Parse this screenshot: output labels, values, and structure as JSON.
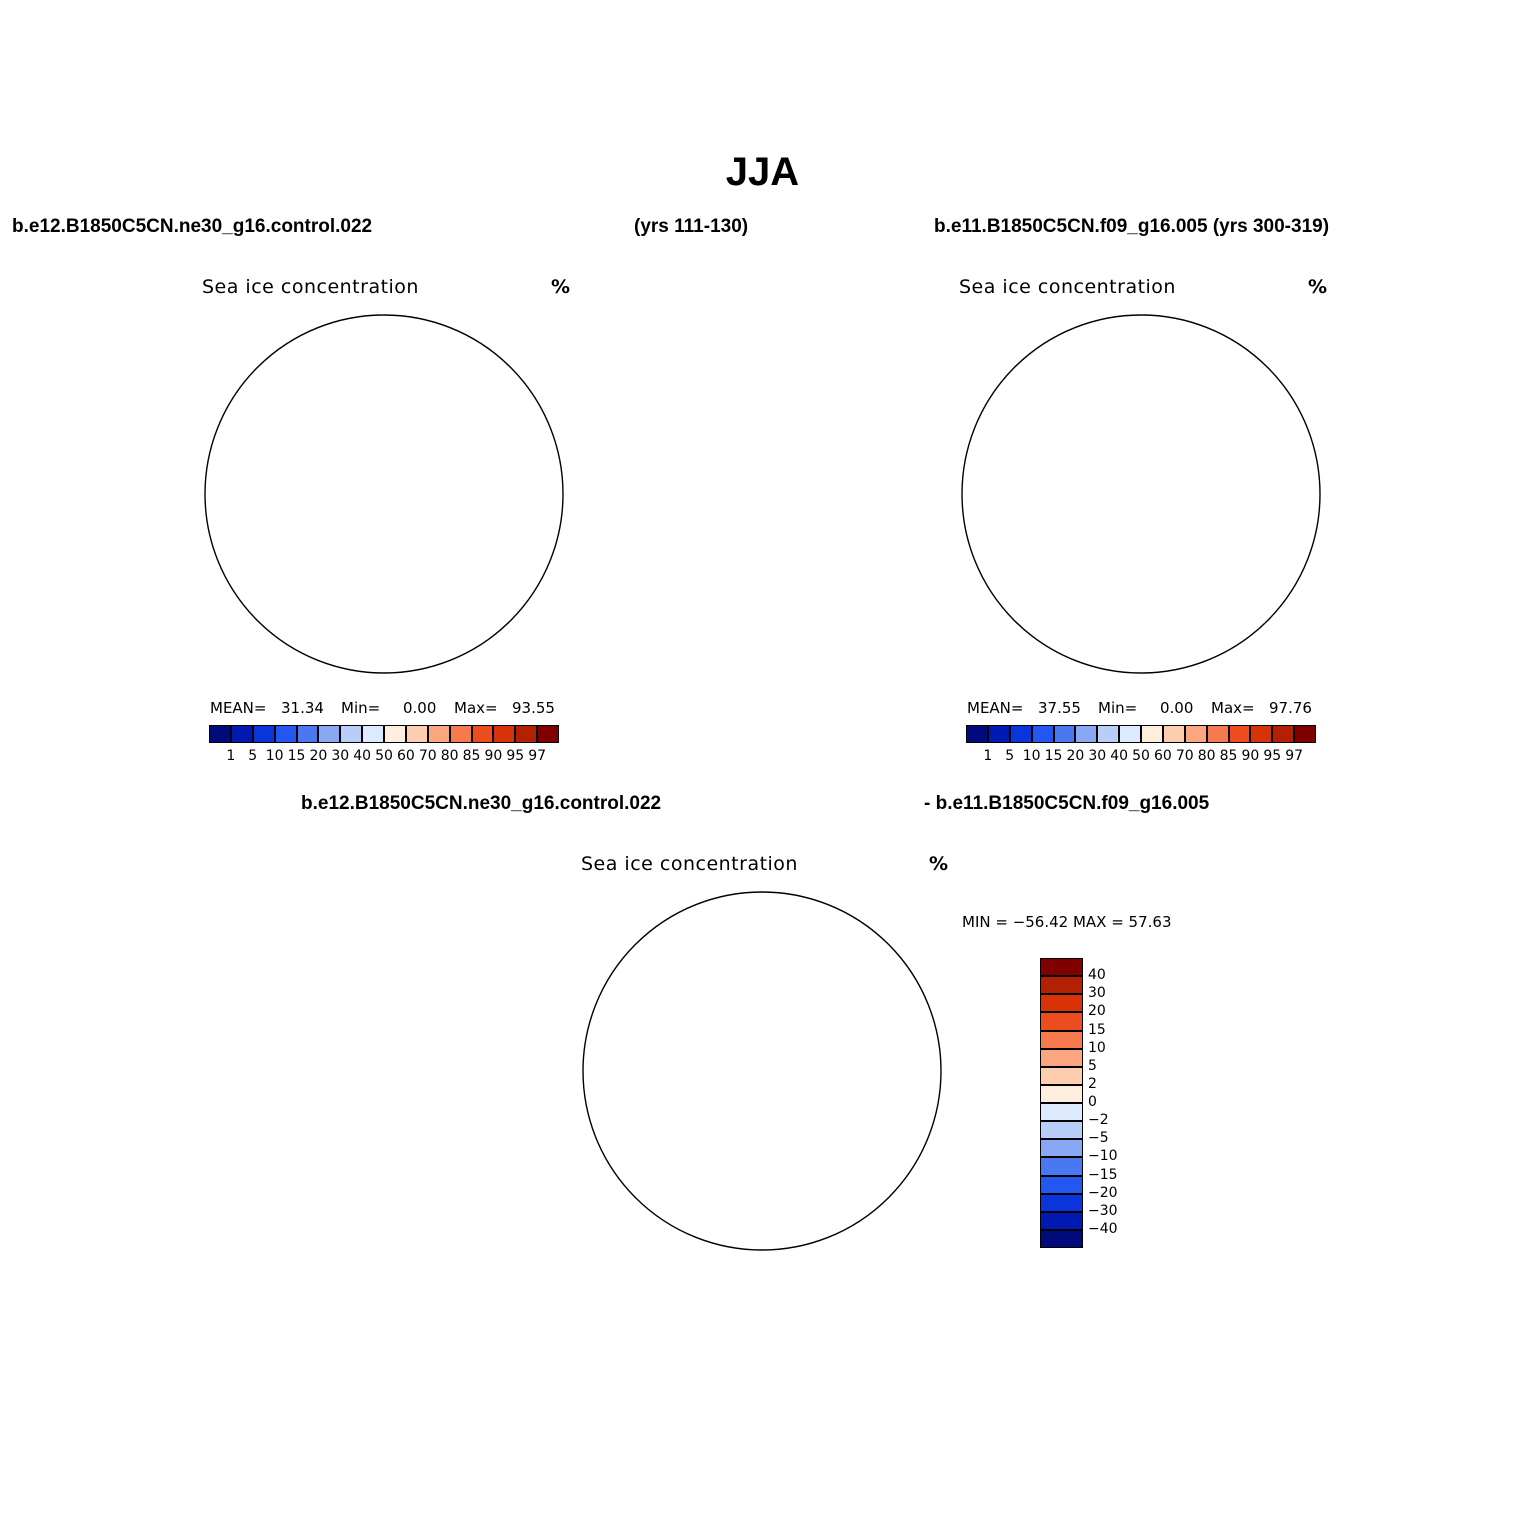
{
  "title": "JJA",
  "header": {
    "case1": "b.e12.B1850C5CN.ne30_g16.control.022",
    "years1": "(yrs 111-130)",
    "case2": "b.e11.B1850C5CN.f09_g16.005 (yrs 300-319)",
    "diff_case1": "b.e12.B1850C5CN.ne30_g16.control.022",
    "diff_case2": "- b.e11.B1850C5CN.f09_g16.005"
  },
  "panels": [
    {
      "subtitle": "Sea ice concentration",
      "units": "%",
      "stats": {
        "mean_label": "MEAN=",
        "mean": "31.34",
        "min_label": "Min=",
        "min": "0.00",
        "max_label": "Max=",
        "max": "93.55"
      }
    },
    {
      "subtitle": "Sea ice concentration",
      "units": "%",
      "stats": {
        "mean_label": "MEAN=",
        "mean": "37.55",
        "min_label": "Min=",
        "min": "0.00",
        "max_label": "Max=",
        "max": "97.76"
      }
    }
  ],
  "diff_panel": {
    "subtitle": "Sea ice concentration",
    "units": "%",
    "stats": "MIN = −56.42 MAX =   57.63"
  },
  "colorbar_abs": {
    "levels": [
      "1",
      "5",
      "10",
      "15",
      "20",
      "30",
      "40",
      "50",
      "60",
      "70",
      "80",
      "85",
      "90",
      "95",
      "97"
    ],
    "colors": [
      "#000a7a",
      "#0019b0",
      "#0a35dc",
      "#2258f0",
      "#4a78f0",
      "#88a8f4",
      "#b8cef8",
      "#dde9fc",
      "#fdeede",
      "#fdcdb0",
      "#fba67e",
      "#f67a4e",
      "#ec4c1e",
      "#d83208",
      "#b42004",
      "#800000"
    ]
  },
  "colorbar_diff": {
    "levels": [
      "40",
      "30",
      "20",
      "15",
      "10",
      "5",
      "2",
      "0",
      "−2",
      "−5",
      "−10",
      "−15",
      "−20",
      "−30",
      "−40"
    ],
    "colors": [
      "#800000",
      "#b42004",
      "#d83208",
      "#ec4c1e",
      "#f67a4e",
      "#fba67e",
      "#fdcdb0",
      "#fdeede",
      "#dde9fc",
      "#b8cef8",
      "#88a8f4",
      "#4a78f0",
      "#2258f0",
      "#0a35dc",
      "#0019b0",
      "#000a7a"
    ]
  }
}
